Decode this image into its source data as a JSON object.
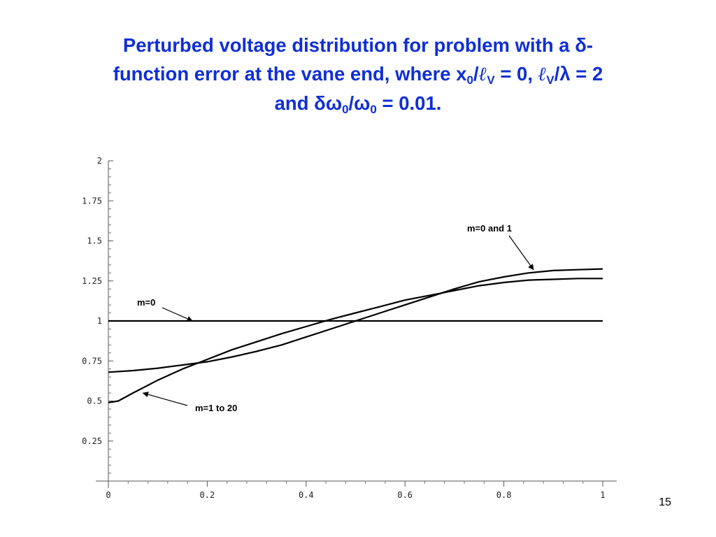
{
  "slide": {
    "title": {
      "line1_text": "Perturbed voltage distribution for problem with a ",
      "delta": "δ",
      "line1_end": "-",
      "line2_a": "function error at the vane end, where x",
      "sub_0": "0",
      "slash": "/",
      "ell": "ℓ",
      "sub_V": "V",
      "line2_b": " = 0,  ",
      "ell2": "ℓ",
      "sub_V2": "V",
      "slash2": "/",
      "lambda": "λ",
      "line2_c": " = 2",
      "line3_a": "and ",
      "delta_omega": "δω",
      "sub_0b": "0",
      "slash3": "/",
      "omega": "ω",
      "sub_0c": "0",
      "line3_b": " = 0.01."
    },
    "page_number": "15",
    "title_color": "#0f2fd6"
  },
  "chart_data": {
    "type": "line",
    "title": "",
    "xlabel": "",
    "ylabel": "",
    "xlim": [
      0,
      1
    ],
    "ylim": [
      0,
      2
    ],
    "x_ticks": [
      "0",
      "0.2",
      "0.4",
      "0.6",
      "0.8",
      "1"
    ],
    "y_ticks": [
      "0.25",
      "0.5",
      "0.75",
      "1",
      "1.25",
      "1.5",
      "1.75",
      "2"
    ],
    "grid": false,
    "line_color": "#000000",
    "series": [
      {
        "name": "m=0",
        "x": [
          0,
          1
        ],
        "y": [
          1.0,
          1.0
        ]
      },
      {
        "name": "m=0 and 1",
        "x": [
          0,
          0.05,
          0.1,
          0.15,
          0.2,
          0.25,
          0.3,
          0.35,
          0.4,
          0.45,
          0.5,
          0.55,
          0.6,
          0.65,
          0.7,
          0.75,
          0.8,
          0.85,
          0.9,
          0.95,
          1.0
        ],
        "y": [
          0.68,
          0.69,
          0.705,
          0.725,
          0.745,
          0.775,
          0.81,
          0.85,
          0.9,
          0.95,
          1.0,
          1.05,
          1.1,
          1.15,
          1.2,
          1.245,
          1.275,
          1.3,
          1.315,
          1.32,
          1.325
        ]
      },
      {
        "name": "m=1 to 20",
        "x": [
          0,
          0.02,
          0.05,
          0.1,
          0.15,
          0.2,
          0.25,
          0.3,
          0.35,
          0.4,
          0.45,
          0.5,
          0.55,
          0.6,
          0.65,
          0.7,
          0.75,
          0.8,
          0.85,
          0.9,
          0.95,
          1.0
        ],
        "y": [
          0.49,
          0.5,
          0.55,
          0.63,
          0.7,
          0.76,
          0.82,
          0.87,
          0.92,
          0.965,
          1.01,
          1.05,
          1.09,
          1.13,
          1.16,
          1.19,
          1.22,
          1.24,
          1.255,
          1.26,
          1.265,
          1.265
        ]
      }
    ],
    "annotations": [
      {
        "text": "m=0 and 1",
        "points_to": "m=0 and 1",
        "x": 0.86,
        "y": 1.32
      },
      {
        "text": "m=0",
        "points_to": "m=0",
        "x": 0.17,
        "y": 1.0
      },
      {
        "text": "m=1 to 20",
        "points_to": "m=1 to 20",
        "x": 0.07,
        "y": 0.55
      }
    ]
  }
}
